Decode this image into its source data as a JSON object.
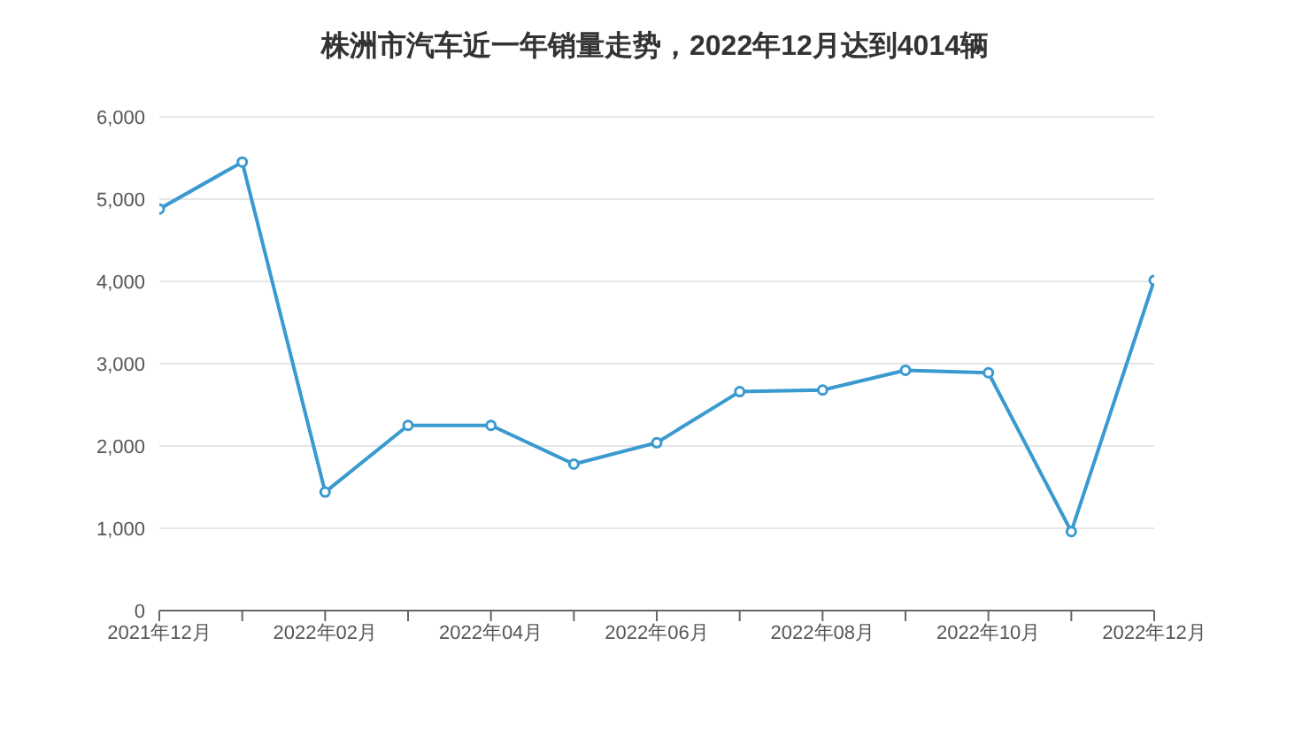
{
  "chart_data": {
    "type": "line",
    "title": "株洲市汽车近一年销量走势，2022年12月达到4014辆",
    "categories": [
      "2021年12月",
      null,
      "2022年02月",
      null,
      "2022年04月",
      null,
      "2022年06月",
      null,
      "2022年08月",
      null,
      "2022年10月",
      null,
      "2022年12月"
    ],
    "series": [
      {
        "color": "#3a9ad0",
        "values": [
          4880,
          5450,
          1440,
          2250,
          2250,
          1780,
          2040,
          2660,
          2680,
          2920,
          2890,
          960,
          4014
        ]
      }
    ],
    "ylim": [
      0,
      6000
    ],
    "yticks": [
      0,
      {
        "value": 1000,
        "label": "1,000"
      },
      {
        "value": 2000,
        "label": "2,000"
      },
      {
        "value": 3000,
        "label": "3,000"
      },
      {
        "value": 4000,
        "label": "4,000"
      },
      {
        "value": 5000,
        "label": "5,000"
      },
      {
        "value": 6000,
        "label": "6,000"
      }
    ],
    "grid": "y",
    "marker": "circle",
    "line_style": "solid",
    "legend": false
  }
}
